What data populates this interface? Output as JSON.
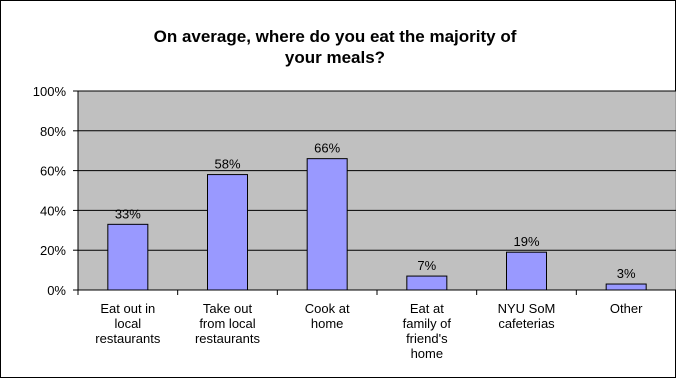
{
  "chart_data": {
    "type": "bar",
    "title_lines": [
      "On average, where do you eat the majority of",
      "your meals?"
    ],
    "categories": [
      [
        "Eat out in",
        "local",
        "restaurants"
      ],
      [
        "Take out",
        "from local",
        "restaurants"
      ],
      [
        "Cook at",
        "home"
      ],
      [
        "Eat at",
        "family of",
        "friend's",
        "home"
      ],
      [
        "NYU SoM",
        "cafeterias"
      ],
      [
        "Other"
      ]
    ],
    "values": [
      33,
      58,
      66,
      7,
      19,
      3
    ],
    "data_labels": [
      "33%",
      "58%",
      "66%",
      "7%",
      "19%",
      "3%"
    ],
    "yticks": [
      "0%",
      "20%",
      "40%",
      "60%",
      "80%",
      "100%"
    ],
    "ylim": [
      0,
      100
    ],
    "grid": true,
    "colors": {
      "plot_bg": "#c0c0c0",
      "bar": "#9999ff",
      "bar_stroke": "#000000",
      "grid": "#000000"
    }
  }
}
